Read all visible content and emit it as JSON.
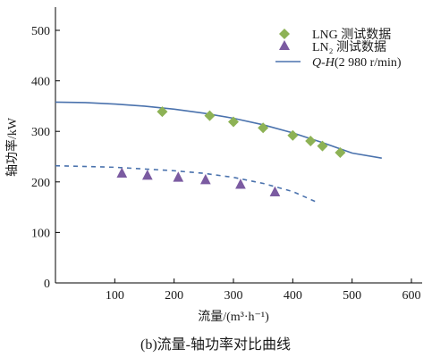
{
  "chart_data": {
    "type": "scatter",
    "title": "",
    "caption": "(b)流量-轴功率对比曲线",
    "xlabel": "流量/(m³·h⁻¹)",
    "ylabel": "轴功率/kW",
    "xlim": [
      0,
      600
    ],
    "ylim": [
      0,
      500
    ],
    "xticks": [
      100,
      200,
      300,
      400,
      500,
      600
    ],
    "yticks": [
      0,
      100,
      200,
      300,
      400,
      500
    ],
    "legend_position": "top-right",
    "series": [
      {
        "name": "LNG 测试数据",
        "kind": "scatter",
        "marker": "diamond",
        "color": "#8db255",
        "x": [
          180,
          260,
          300,
          350,
          400,
          430,
          450,
          480
        ],
        "y": [
          339,
          331,
          319,
          307,
          292,
          281,
          271,
          258
        ]
      },
      {
        "name": "LN₂ 测试数据",
        "kind": "scatter",
        "marker": "triangle",
        "color": "#7b5ba1",
        "x": [
          112,
          155,
          207,
          253,
          312,
          370
        ],
        "y": [
          217,
          213,
          209,
          204,
          195,
          180
        ]
      },
      {
        "name": "Q-H(2 980 r/min)",
        "name_italic": "Q",
        "name_italic2": "H",
        "name_rest": "(2 980 r/min)",
        "kind": "line",
        "style": "solid",
        "color": "#4a72ad",
        "x": [
          0,
          50,
          100,
          150,
          200,
          250,
          300,
          350,
          400,
          450,
          500,
          550
        ],
        "y": [
          358,
          357,
          354,
          350,
          344,
          336,
          326,
          313,
          297,
          278,
          257,
          247
        ]
      },
      {
        "kind": "line",
        "style": "dashed",
        "color": "#4a72ad",
        "x": [
          0,
          100,
          200,
          250,
          300,
          350,
          400,
          440
        ],
        "y": [
          232,
          229,
          222,
          217,
          209,
          197,
          181,
          160
        ]
      }
    ]
  }
}
